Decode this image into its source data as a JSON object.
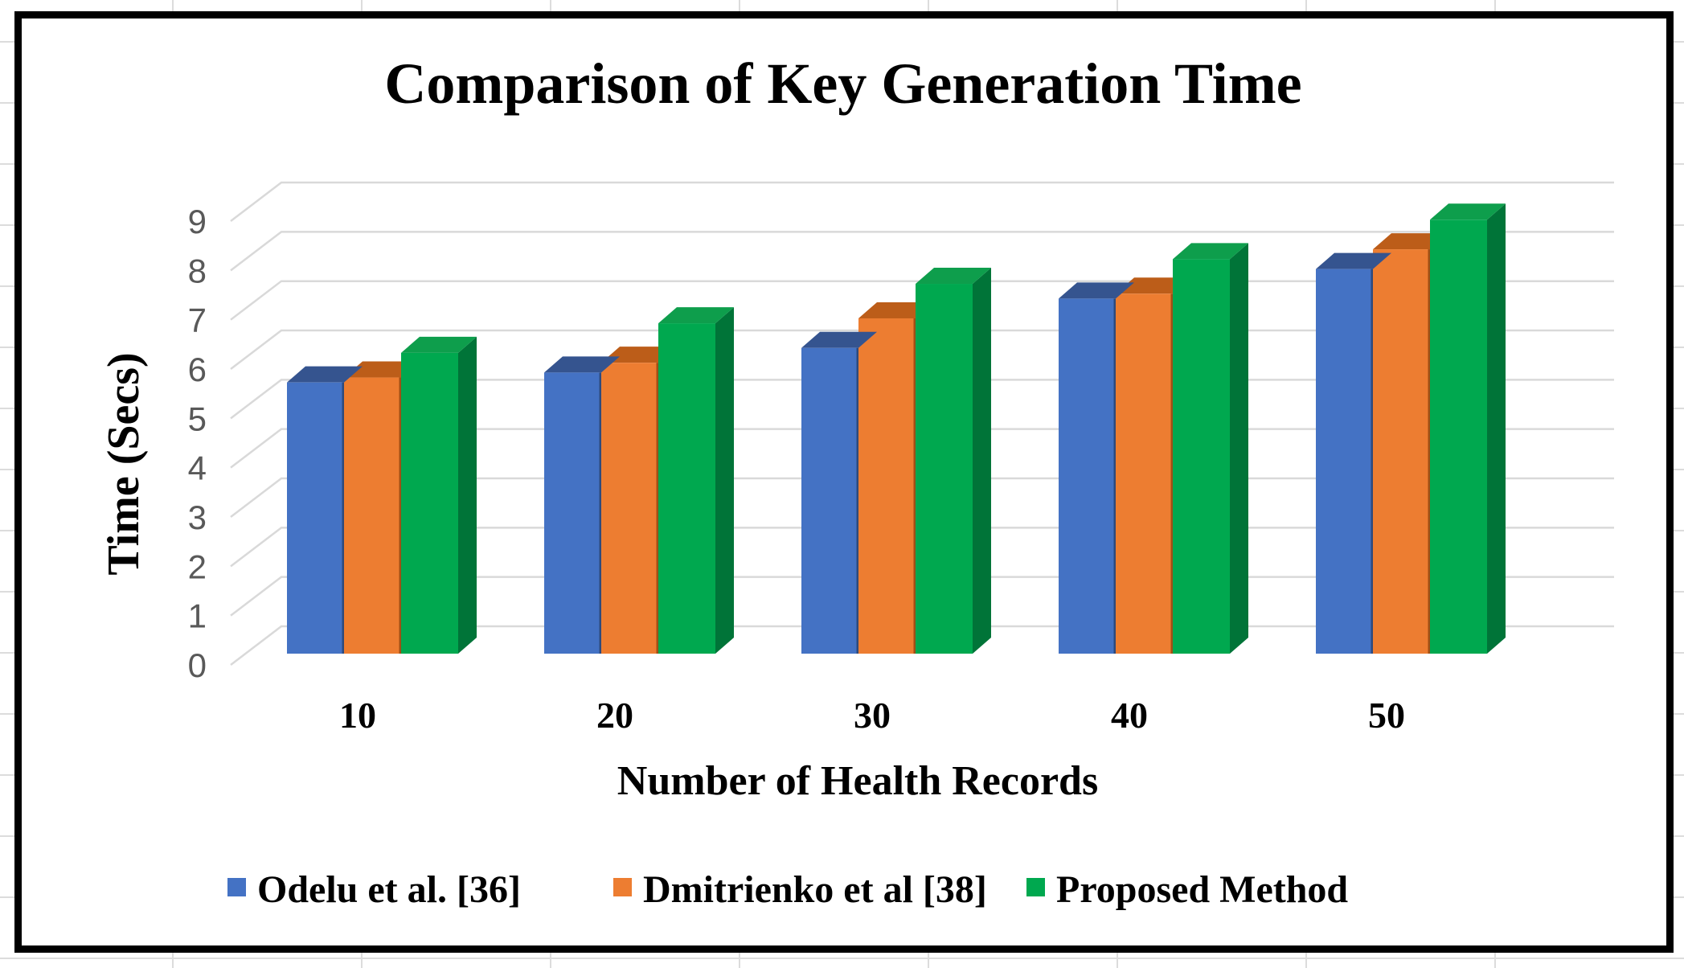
{
  "window": {
    "background_color": "#ffffff",
    "worksheet_gridline_color": "#dcdcdc",
    "chart_border_color": "#000000"
  },
  "chart_data": {
    "type": "bar",
    "variant": "3d-clustered-column",
    "title": "Comparison of Key Generation Time",
    "xlabel": "Number of Health Records",
    "ylabel": "Time (Secs)",
    "categories": [
      "10",
      "20",
      "30",
      "40",
      "50"
    ],
    "series": [
      {
        "name": "Odelu et al. [36]",
        "color": "#4472C4",
        "top_color": "#35548F",
        "side_color": "#2E4A7D",
        "values": [
          5.5,
          5.7,
          6.2,
          7.2,
          7.8
        ]
      },
      {
        "name": "Dmitrienko et al [38]",
        "color": "#ED7D31",
        "top_color": "#BC5D19",
        "side_color": "#A04F15",
        "values": [
          5.6,
          5.9,
          6.8,
          7.3,
          8.2
        ]
      },
      {
        "name": "Proposed Method",
        "color": "#00A84F",
        "top_color": "#0E9E4C",
        "side_color": "#007438",
        "values": [
          6.1,
          6.7,
          7.5,
          8.0,
          8.8
        ]
      }
    ],
    "y_ticks": [
      "0",
      "1",
      "2",
      "3",
      "4",
      "5",
      "6",
      "7",
      "8",
      "9"
    ],
    "ylim": [
      0,
      9
    ],
    "grid": true,
    "gridline_color": "#D9D9D9",
    "tick_label_color": "#595959",
    "legend_position": "bottom"
  }
}
